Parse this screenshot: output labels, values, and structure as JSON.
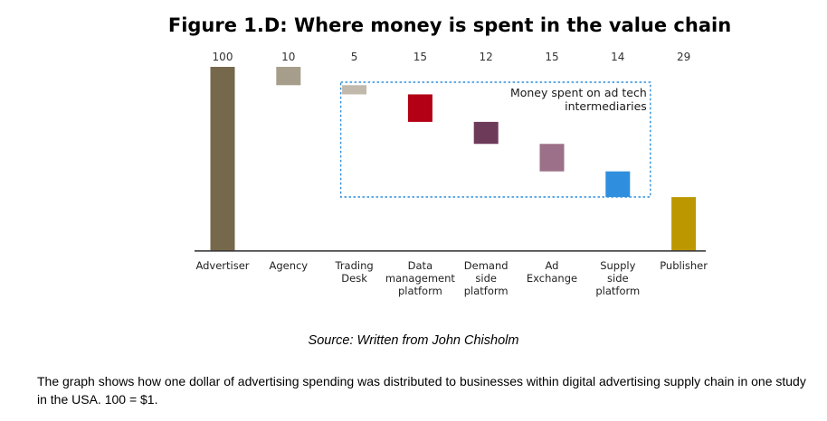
{
  "chart_data": {
    "type": "bar",
    "subtype": "waterfall",
    "title": "Figure 1.D: Where money is spent in the value chain",
    "categories": [
      [
        "Advertiser"
      ],
      [
        "Agency"
      ],
      [
        "Trading",
        "Desk"
      ],
      [
        "Data",
        "management",
        "platform"
      ],
      [
        "Demand",
        "side",
        "platform"
      ],
      [
        "Ad",
        "Exchange"
      ],
      [
        "Supply",
        "side",
        "platform"
      ],
      [
        "Publisher"
      ]
    ],
    "values": [
      100,
      10,
      5,
      15,
      12,
      15,
      14,
      29
    ],
    "value_labels": [
      "100",
      "10",
      "5",
      "15",
      "12",
      "15",
      "14",
      "29"
    ],
    "colors": [
      "#76694b",
      "#a69e8b",
      "#c0b9ac",
      "#b30014",
      "#6e3a5a",
      "#9c7088",
      "#2f8fde",
      "#bd9700"
    ],
    "ylim": [
      0,
      100
    ],
    "annotation": {
      "lines": [
        "Money spent on ad tech",
        "intermediaries"
      ],
      "groups": [
        2,
        6
      ],
      "border_color": "#2f8fde"
    }
  },
  "source": "Source: Written from John Chisholm",
  "description": "The graph shows how one dollar of advertising spending was distributed to businesses within digital advertising supply chain in one study in the USA. 100 = $1."
}
